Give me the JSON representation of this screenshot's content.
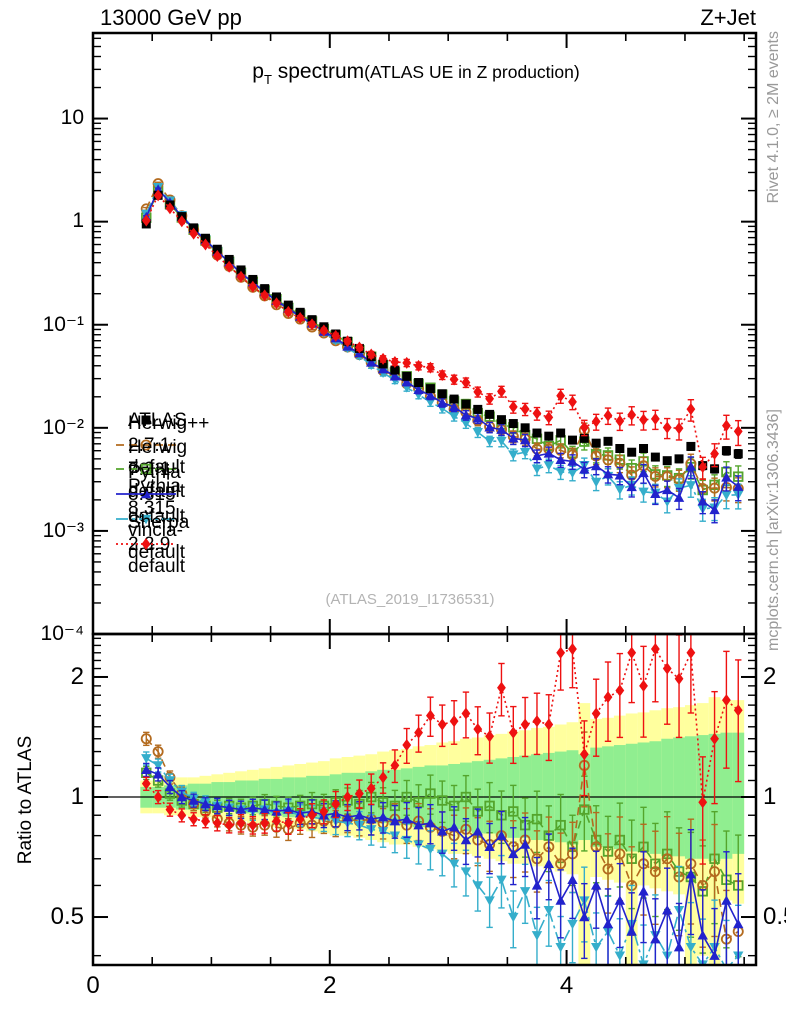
{
  "header": {
    "left": "13000 GeV pp",
    "right": "Z+Jet"
  },
  "title": {
    "p": "p",
    "sub": "T",
    "rest": " spectrum",
    "paren": "(ATLAS UE in Z production)"
  },
  "watermark": "(ATLAS_2019_I1736531)",
  "side_notes": {
    "top": "Rivet 4.1.0, ≥ 2M events",
    "bottom": "mcplots.cern.ch [arXiv:1306.3436]"
  },
  "ratio_ylabel": "Ratio to ATLAS",
  "axes": {
    "x": {
      "min": 0,
      "max": 5.6,
      "major_ticks": [
        0,
        2,
        4
      ],
      "major_labels": [
        "0",
        "2",
        "4"
      ],
      "minor_step": 0.5
    },
    "y_top": {
      "type": "log",
      "min": 0.0001,
      "max": 68,
      "tick_labels": [
        {
          "v": 10,
          "t": "10"
        },
        {
          "v": 1,
          "t": "1"
        },
        {
          "v": 0.1,
          "t": "10⁻¹"
        },
        {
          "v": 0.01,
          "t": "10⁻²"
        },
        {
          "v": 0.001,
          "t": "10⁻³"
        },
        {
          "v": 0.0001,
          "t": "10⁻⁴"
        }
      ]
    },
    "y_ratio": {
      "type": "log",
      "min": 0.379,
      "max": 2.56,
      "tick_labels": [
        {
          "v": 2,
          "t": "2"
        },
        {
          "v": 1,
          "t": "1"
        },
        {
          "v": 0.5,
          "t": "0.5"
        }
      ]
    }
  },
  "chart_data": {
    "type": "scatter",
    "layout": "two-panel: log spectrum (top) + log ratio-to-data (bottom)",
    "title": "pT spectrum (ATLAS UE in Z production)",
    "xlabel": "",
    "ylabel": "",
    "ratio_ylabel": "Ratio to ATLAS",
    "xlim": [
      0,
      5.6
    ],
    "ylim_top": [
      0.0001,
      68
    ],
    "ylim_ratio": [
      0.379,
      2.56
    ],
    "bin_width": 0.1,
    "x": [
      0.45,
      0.55,
      0.65,
      0.75,
      0.85,
      0.95,
      1.05,
      1.15,
      1.25,
      1.35,
      1.45,
      1.55,
      1.65,
      1.75,
      1.85,
      1.95,
      2.05,
      2.15,
      2.25,
      2.35,
      2.45,
      2.55,
      2.65,
      2.75,
      2.85,
      2.95,
      3.05,
      3.15,
      3.25,
      3.35,
      3.45,
      3.55,
      3.65,
      3.75,
      3.85,
      3.95,
      4.05,
      4.15,
      4.25,
      4.35,
      4.45,
      4.55,
      4.65,
      4.75,
      4.85,
      4.95,
      5.05,
      5.15,
      5.25,
      5.35,
      5.45
    ],
    "err_rel": [
      0.03,
      0.03,
      0.03,
      0.03,
      0.03,
      0.03,
      0.035,
      0.035,
      0.04,
      0.04,
      0.045,
      0.045,
      0.05,
      0.05,
      0.055,
      0.055,
      0.06,
      0.06,
      0.065,
      0.07,
      0.07,
      0.075,
      0.08,
      0.085,
      0.09,
      0.095,
      0.1,
      0.105,
      0.11,
      0.115,
      0.12,
      0.13,
      0.135,
      0.14,
      0.15,
      0.155,
      0.16,
      0.17,
      0.175,
      0.18,
      0.19,
      0.2,
      0.205,
      0.21,
      0.22,
      0.23,
      0.235,
      0.24,
      0.25,
      0.26,
      0.27
    ],
    "series": [
      {
        "name": "ATLAS",
        "color": "#000000",
        "marker": "square-filled",
        "line": "none",
        "y": [
          0.95,
          1.8,
          1.45,
          1.12,
          0.87,
          0.69,
          0.54,
          0.43,
          0.34,
          0.275,
          0.224,
          0.186,
          0.155,
          0.132,
          0.112,
          0.0955,
          0.0813,
          0.0692,
          0.0589,
          0.049,
          0.0417,
          0.0363,
          0.0316,
          0.0275,
          0.024,
          0.0214,
          0.019,
          0.017,
          0.0151,
          0.0135,
          0.012,
          0.011,
          0.01,
          0.0089,
          0.0083,
          0.0089,
          0.0076,
          0.0079,
          0.0071,
          0.0074,
          0.0063,
          0.0058,
          0.0063,
          0.0052,
          0.0048,
          0.005,
          0.0066,
          0.0043,
          0.004,
          0.006,
          0.0056
        ]
      },
      {
        "name": "Herwig++ 2.7.1 default",
        "color": "#b36b1f",
        "marker": "circle-open",
        "line": "dashed",
        "ratio_to_atlas": [
          1.4,
          1.3,
          1.12,
          1.02,
          0.96,
          0.92,
          0.88,
          0.86,
          0.85,
          0.84,
          0.85,
          0.84,
          0.83,
          0.86,
          0.85,
          0.87,
          0.86,
          0.88,
          0.87,
          0.88,
          0.86,
          0.88,
          0.85,
          0.87,
          0.84,
          0.82,
          0.8,
          0.83,
          0.78,
          0.76,
          0.8,
          0.75,
          0.78,
          0.7,
          0.75,
          0.68,
          0.72,
          1.2,
          0.75,
          0.66,
          0.72,
          0.6,
          0.68,
          0.65,
          0.7,
          0.63,
          0.68,
          0.6,
          0.65,
          0.44,
          0.46
        ]
      },
      {
        "name": "Herwig 7.2.1 default",
        "color": "#54a52c",
        "marker": "square-open",
        "line": "dashed",
        "ratio_to_atlas": [
          1.15,
          1.1,
          1.02,
          0.98,
          0.96,
          0.95,
          0.94,
          0.95,
          0.94,
          0.95,
          0.96,
          0.95,
          0.94,
          0.95,
          0.96,
          0.95,
          0.97,
          0.98,
          0.96,
          1.0,
          0.97,
          0.95,
          1.0,
          0.97,
          1.02,
          0.98,
          0.95,
          1.0,
          0.92,
          0.95,
          0.9,
          0.92,
          0.85,
          0.88,
          0.8,
          0.85,
          0.75,
          0.93,
          0.78,
          0.73,
          0.78,
          0.7,
          0.75,
          0.68,
          0.72,
          0.65,
          0.63,
          0.58,
          0.7,
          0.62,
          0.6
        ]
      },
      {
        "name": "Pythia 8.315 default",
        "color": "#2222cc",
        "marker": "triangle-up-filled",
        "line": "solid",
        "ratio_to_atlas": [
          1.17,
          1.14,
          1.06,
          1.0,
          0.98,
          0.96,
          0.95,
          0.94,
          0.93,
          0.94,
          0.93,
          0.92,
          0.93,
          0.91,
          0.92,
          0.9,
          0.91,
          0.89,
          0.9,
          0.88,
          0.89,
          0.87,
          0.88,
          0.85,
          0.86,
          0.82,
          0.84,
          0.78,
          0.82,
          0.75,
          0.8,
          0.72,
          0.76,
          0.6,
          0.68,
          0.55,
          0.62,
          0.5,
          0.6,
          0.48,
          0.55,
          0.46,
          0.58,
          0.44,
          0.52,
          0.42,
          0.64,
          0.45,
          0.4,
          0.55,
          0.48
        ]
      },
      {
        "name": "Pythia 8.315 vincia-default",
        "color": "#35aecb",
        "marker": "triangle-down-filled",
        "line": "dashdot",
        "ratio_to_atlas": [
          1.25,
          1.2,
          1.1,
          1.03,
          0.99,
          0.97,
          0.95,
          0.94,
          0.93,
          0.92,
          0.93,
          0.91,
          0.92,
          0.9,
          0.89,
          0.88,
          0.87,
          0.86,
          0.85,
          0.83,
          0.82,
          0.8,
          0.78,
          0.76,
          0.74,
          0.72,
          0.68,
          0.65,
          0.6,
          0.55,
          0.62,
          0.5,
          0.58,
          0.45,
          0.52,
          0.42,
          0.48,
          0.55,
          0.42,
          0.46,
          0.4,
          0.48,
          0.38,
          0.45,
          0.4,
          0.52,
          0.42,
          0.38,
          0.42,
          0.37,
          0.4
        ]
      },
      {
        "name": "Sherpa 2.2.9 default",
        "color": "#ee1111",
        "marker": "diamond-filled",
        "line": "dotted",
        "ratio_to_atlas": [
          1.08,
          1.0,
          0.93,
          0.9,
          0.88,
          0.87,
          0.86,
          0.85,
          0.86,
          0.85,
          0.86,
          0.87,
          0.86,
          0.88,
          0.9,
          0.92,
          0.96,
          1.0,
          1.02,
          1.05,
          1.12,
          1.2,
          1.35,
          1.45,
          1.6,
          1.52,
          1.55,
          1.62,
          1.48,
          1.42,
          1.88,
          1.45,
          1.52,
          1.55,
          1.52,
          2.3,
          2.35,
          1.28,
          1.62,
          1.78,
          1.85,
          2.3,
          1.9,
          2.35,
          2.1,
          1.98,
          2.3,
          0.97,
          1.4,
          1.75,
          1.65
        ]
      }
    ],
    "uncertainty_bands": {
      "yellow": {
        "color": "#ffff9e",
        "lo": [
          0.91,
          0.91,
          0.9,
          0.9,
          0.89,
          0.89,
          0.88,
          0.87,
          0.87,
          0.86,
          0.85,
          0.84,
          0.84,
          0.83,
          0.82,
          0.81,
          0.8,
          0.8,
          0.79,
          0.78,
          0.77,
          0.76,
          0.76,
          0.75,
          0.74,
          0.73,
          0.72,
          0.72,
          0.71,
          0.7,
          0.69,
          0.68,
          0.68,
          0.67,
          0.66,
          0.65,
          0.64,
          0.36,
          0.63,
          0.62,
          0.61,
          0.38,
          0.6,
          0.59,
          0.58,
          0.57,
          0.38,
          0.4,
          0.36,
          0.55,
          0.54
        ],
        "hi": [
          1.1,
          1.1,
          1.11,
          1.12,
          1.12,
          1.13,
          1.14,
          1.15,
          1.16,
          1.17,
          1.18,
          1.19,
          1.2,
          1.21,
          1.22,
          1.23,
          1.25,
          1.26,
          1.27,
          1.28,
          1.3,
          1.31,
          1.32,
          1.34,
          1.35,
          1.37,
          1.38,
          1.4,
          1.41,
          1.43,
          1.44,
          1.46,
          1.47,
          1.49,
          1.5,
          1.52,
          1.54,
          1.72,
          1.57,
          1.58,
          1.6,
          1.62,
          1.63,
          1.65,
          1.67,
          1.68,
          1.7,
          1.72,
          1.78,
          1.75,
          1.75
        ]
      },
      "green": {
        "color": "#90ee90",
        "lo": [
          0.94,
          0.94,
          0.94,
          0.93,
          0.93,
          0.93,
          0.92,
          0.92,
          0.91,
          0.91,
          0.9,
          0.9,
          0.89,
          0.89,
          0.89,
          0.88,
          0.88,
          0.87,
          0.87,
          0.86,
          0.86,
          0.85,
          0.85,
          0.84,
          0.84,
          0.83,
          0.83,
          0.82,
          0.81,
          0.81,
          0.8,
          0.79,
          0.79,
          0.78,
          0.78,
          0.77,
          0.76,
          0.78,
          0.75,
          0.75,
          0.74,
          0.73,
          0.73,
          0.72,
          0.71,
          0.71,
          0.7,
          0.7,
          0.69,
          0.7,
          0.72
        ],
        "hi": [
          1.06,
          1.06,
          1.07,
          1.07,
          1.08,
          1.08,
          1.09,
          1.09,
          1.1,
          1.1,
          1.11,
          1.11,
          1.12,
          1.12,
          1.13,
          1.13,
          1.14,
          1.15,
          1.15,
          1.16,
          1.17,
          1.17,
          1.18,
          1.19,
          1.2,
          1.2,
          1.21,
          1.22,
          1.23,
          1.24,
          1.25,
          1.26,
          1.27,
          1.28,
          1.29,
          1.3,
          1.31,
          1.28,
          1.33,
          1.34,
          1.35,
          1.36,
          1.37,
          1.38,
          1.4,
          1.41,
          1.42,
          1.43,
          1.44,
          1.45,
          1.45
        ]
      }
    },
    "legend_position": "top-left inside main panel",
    "grid": false
  }
}
